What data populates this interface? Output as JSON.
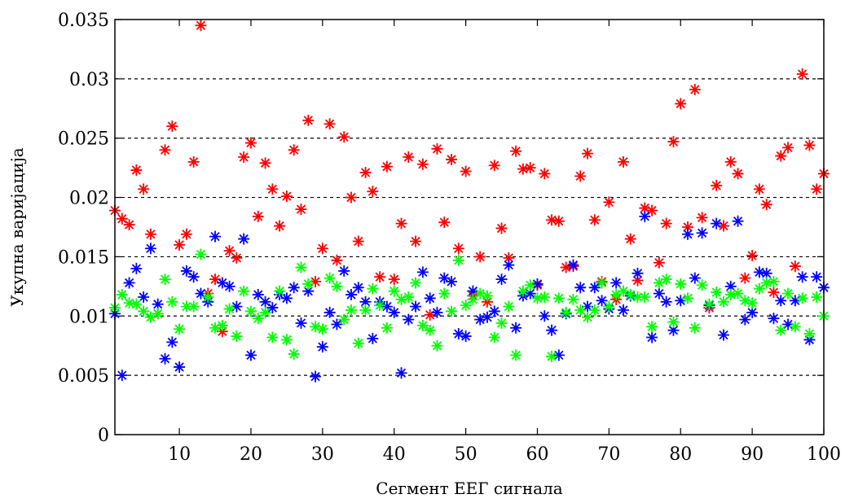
{
  "chart_data": {
    "type": "scatter",
    "title": "",
    "xlabel": "Сегмент ЕЕГ сигнала",
    "ylabel": "Укупна варијација",
    "xlim": [
      1,
      100
    ],
    "ylim": [
      0,
      0.035
    ],
    "x_ticks": [
      10,
      20,
      30,
      40,
      50,
      60,
      70,
      80,
      90,
      100
    ],
    "x_tick_labels": [
      "10",
      "20",
      "30",
      "40",
      "50",
      "60",
      "70",
      "80",
      "90",
      "100"
    ],
    "y_ticks": [
      0,
      0.005,
      0.01,
      0.015,
      0.02,
      0.025,
      0.03,
      0.035
    ],
    "y_tick_labels": [
      "0",
      "0.005",
      "0.01",
      "0.015",
      "0.02",
      "0.025",
      "0.03",
      "0.035"
    ],
    "grid": "horizontal dashed",
    "legend": "none",
    "marker": "asterisk",
    "series": [
      {
        "color": "#ff0000",
        "x": [
          1,
          2,
          3,
          4,
          5,
          6,
          7,
          8,
          9,
          10,
          11,
          12,
          13,
          14,
          15,
          16,
          17,
          18,
          19,
          20,
          21,
          22,
          23,
          24,
          25,
          26,
          27,
          28,
          29,
          30,
          31,
          32,
          33,
          34,
          35,
          36,
          37,
          38,
          39,
          40,
          41,
          42,
          43,
          44,
          45,
          46,
          47,
          48,
          49,
          50,
          51,
          52,
          53,
          54,
          55,
          56,
          57,
          58,
          59,
          60,
          61,
          62,
          63,
          64,
          65,
          66,
          67,
          68,
          69,
          70,
          71,
          72,
          73,
          74,
          75,
          76,
          77,
          78,
          79,
          80,
          81,
          82,
          83,
          84,
          85,
          86,
          87,
          88,
          89,
          90,
          91,
          92,
          93,
          94,
          95,
          96,
          97,
          98,
          99,
          100
        ],
        "y": [
          0.0189,
          0.0182,
          0.0177,
          0.0223,
          0.0207,
          0.0169,
          0.0102,
          0.024,
          0.026,
          0.016,
          0.0169,
          0.023,
          0.0345,
          0.0119,
          0.0131,
          0.0087,
          0.0155,
          0.0149,
          0.0234,
          0.0246,
          0.0184,
          0.0229,
          0.0207,
          0.0176,
          0.0201,
          0.024,
          0.019,
          0.0265,
          0.0129,
          0.0157,
          0.0262,
          0.0147,
          0.0251,
          0.02,
          0.0163,
          0.0221,
          0.0205,
          0.0133,
          0.0226,
          0.0131,
          0.0178,
          0.0234,
          0.0163,
          0.0228,
          0.0101,
          0.0241,
          0.0179,
          0.0232,
          0.0157,
          0.0222,
          0.0117,
          0.015,
          0.0112,
          0.0227,
          0.0174,
          0.0149,
          0.0239,
          0.0224,
          0.0225,
          0.0126,
          0.022,
          0.0181,
          0.018,
          0.0141,
          0.0142,
          0.0218,
          0.0237,
          0.0181,
          0.0129,
          0.0196,
          0.0114,
          0.023,
          0.0165,
          0.013,
          0.0191,
          0.0189,
          0.0145,
          0.0178,
          0.0247,
          0.0279,
          0.0175,
          0.0291,
          0.0183,
          0.0107,
          0.021,
          0.0176,
          0.023,
          0.022,
          0.0132,
          0.0151,
          0.0207,
          0.0194,
          0.012,
          0.0235,
          0.0242,
          0.0142,
          0.0304,
          0.0244,
          0.0207,
          0.022
        ]
      },
      {
        "color": "#0000ff",
        "x": [
          1,
          2,
          3,
          4,
          5,
          6,
          7,
          8,
          9,
          10,
          11,
          12,
          13,
          14,
          15,
          16,
          17,
          18,
          19,
          20,
          21,
          22,
          23,
          24,
          25,
          26,
          27,
          28,
          29,
          30,
          31,
          32,
          33,
          34,
          35,
          36,
          37,
          38,
          39,
          40,
          41,
          42,
          43,
          44,
          45,
          46,
          47,
          48,
          49,
          50,
          51,
          52,
          53,
          54,
          55,
          56,
          57,
          58,
          59,
          60,
          61,
          62,
          63,
          64,
          65,
          66,
          67,
          68,
          69,
          70,
          71,
          72,
          73,
          74,
          75,
          76,
          77,
          78,
          79,
          80,
          81,
          82,
          83,
          84,
          85,
          86,
          87,
          88,
          89,
          90,
          91,
          92,
          93,
          94,
          95,
          96,
          97,
          98,
          99,
          100
        ],
        "y": [
          0.0102,
          0.005,
          0.0128,
          0.014,
          0.0116,
          0.0157,
          0.011,
          0.0064,
          0.0078,
          0.0057,
          0.0138,
          0.0133,
          0.0119,
          0.0112,
          0.0167,
          0.0128,
          0.0125,
          0.0108,
          0.0165,
          0.0067,
          0.0118,
          0.0112,
          0.0107,
          0.0118,
          0.0115,
          0.0124,
          0.0094,
          0.0121,
          0.0049,
          0.0074,
          0.0103,
          0.0093,
          0.0138,
          0.0118,
          0.0124,
          0.0112,
          0.0081,
          0.0112,
          0.0108,
          0.0103,
          0.0052,
          0.0097,
          0.0108,
          0.0137,
          0.0115,
          0.0103,
          0.0132,
          0.0129,
          0.0085,
          0.0083,
          0.0121,
          0.0097,
          0.0099,
          0.0104,
          0.0131,
          0.0143,
          0.009,
          0.0117,
          0.0119,
          0.0127,
          0.01,
          0.0088,
          0.0067,
          0.0102,
          0.0143,
          0.0124,
          0.0108,
          0.0124,
          0.0113,
          0.0106,
          0.0128,
          0.0105,
          0.0117,
          0.0136,
          0.0184,
          0.0082,
          0.0119,
          0.0112,
          0.0088,
          0.0113,
          0.0169,
          0.0132,
          0.017,
          0.0109,
          0.0178,
          0.0084,
          0.0125,
          0.018,
          0.0097,
          0.0103,
          0.0137,
          0.0136,
          0.0098,
          0.0113,
          0.0093,
          0.0113,
          0.0133,
          0.008,
          0.0133,
          0.0124
        ]
      },
      {
        "color": "#00ff00",
        "x": [
          1,
          2,
          3,
          4,
          5,
          6,
          7,
          8,
          9,
          10,
          11,
          12,
          13,
          14,
          15,
          16,
          17,
          18,
          19,
          20,
          21,
          22,
          23,
          24,
          25,
          26,
          27,
          28,
          29,
          30,
          31,
          32,
          33,
          34,
          35,
          36,
          37,
          38,
          39,
          40,
          41,
          42,
          43,
          44,
          45,
          46,
          47,
          48,
          49,
          50,
          51,
          52,
          53,
          54,
          55,
          56,
          57,
          58,
          59,
          60,
          61,
          62,
          63,
          64,
          65,
          66,
          67,
          68,
          69,
          70,
          71,
          72,
          73,
          74,
          75,
          76,
          77,
          78,
          79,
          80,
          81,
          82,
          83,
          84,
          85,
          86,
          87,
          88,
          89,
          90,
          91,
          92,
          93,
          94,
          95,
          96,
          97,
          98,
          99,
          100
        ],
        "y": [
          0.0107,
          0.0118,
          0.0111,
          0.011,
          0.0104,
          0.0099,
          0.0102,
          0.0131,
          0.0112,
          0.0089,
          0.0108,
          0.0108,
          0.0152,
          0.0116,
          0.009,
          0.0092,
          0.0106,
          0.0083,
          0.0121,
          0.0104,
          0.0098,
          0.0103,
          0.0082,
          0.0121,
          0.008,
          0.0068,
          0.0141,
          0.0127,
          0.0091,
          0.0089,
          0.0132,
          0.0125,
          0.0097,
          0.0105,
          0.0077,
          0.0105,
          0.0123,
          0.0109,
          0.009,
          0.0121,
          0.0114,
          0.0116,
          0.0128,
          0.0092,
          0.0088,
          0.0075,
          0.0119,
          0.0104,
          0.0147,
          0.0109,
          0.0114,
          0.0119,
          0.0117,
          0.0082,
          0.0094,
          0.0108,
          0.0067,
          0.0121,
          0.0126,
          0.0115,
          0.0116,
          0.0066,
          0.0115,
          0.0103,
          0.0114,
          0.0105,
          0.0099,
          0.0105,
          0.0128,
          0.0108,
          0.0118,
          0.0121,
          0.0118,
          0.0116,
          0.0116,
          0.0091,
          0.0128,
          0.0131,
          0.0095,
          0.0127,
          0.0115,
          0.009,
          0.0126,
          0.011,
          0.012,
          0.0112,
          0.0118,
          0.0119,
          0.0113,
          0.0111,
          0.0123,
          0.0128,
          0.0129,
          0.0088,
          0.0119,
          0.0091,
          0.0115,
          0.0085,
          0.0116,
          0.01
        ]
      }
    ]
  }
}
